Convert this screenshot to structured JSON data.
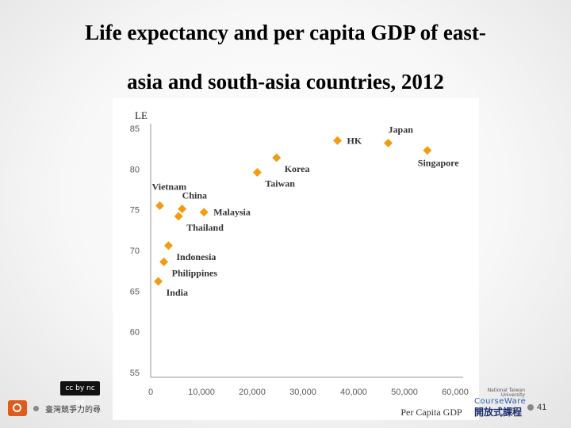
{
  "slide": {
    "title_line1": "Life expectancy and per capita GDP of east-",
    "title_line2": "asia and south-asia countries, 2012",
    "footer_text": "臺灣競爭力的尋",
    "license_badge": "cc by nc nd",
    "page_number": "41",
    "logo": {
      "university": "National Taiwan University",
      "ware": "CourseWare",
      "chinese": "開放式課程"
    }
  },
  "chart_data": {
    "type": "scatter",
    "title": "",
    "xlabel": "Per Capita GDP",
    "ylabel": "LE",
    "xlim": [
      0,
      60000
    ],
    "ylim": [
      55,
      85
    ],
    "x_ticks": [
      0,
      10000,
      20000,
      30000,
      40000,
      50000,
      60000
    ],
    "x_tick_labels": [
      "0",
      "10,000",
      "20,000",
      "30,000",
      "40,000",
      "50,000",
      "60,000"
    ],
    "y_ticks": [
      55,
      60,
      65,
      70,
      75,
      80,
      85
    ],
    "y_tick_labels": [
      "55",
      "60",
      "65",
      "70",
      "75",
      "80",
      "85"
    ],
    "grid": false,
    "marker_color": "#f39c12",
    "points": [
      {
        "label": "Japan",
        "x": 46800,
        "y": 83.2,
        "label_pos": "above-right"
      },
      {
        "label": "HK",
        "x": 36800,
        "y": 83.5,
        "label_pos": "right"
      },
      {
        "label": "Singapore",
        "x": 54500,
        "y": 82.3,
        "label_pos": "below"
      },
      {
        "label": "Korea",
        "x": 24800,
        "y": 81.4,
        "label_pos": "below-right"
      },
      {
        "label": "Taiwan",
        "x": 21000,
        "y": 79.6,
        "label_pos": "below-right"
      },
      {
        "label": "Vietnam",
        "x": 1800,
        "y": 75.5,
        "label_pos": "above"
      },
      {
        "label": "China",
        "x": 6200,
        "y": 75.1,
        "label_pos": "above-right"
      },
      {
        "label": "Malaysia",
        "x": 10500,
        "y": 74.7,
        "label_pos": "right"
      },
      {
        "label": "Thailand",
        "x": 5500,
        "y": 74.2,
        "label_pos": "below-right"
      },
      {
        "label": "Indonesia",
        "x": 3500,
        "y": 70.6,
        "label_pos": "below-right"
      },
      {
        "label": "Philippines",
        "x": 2600,
        "y": 68.6,
        "label_pos": "below-right"
      },
      {
        "label": "India",
        "x": 1500,
        "y": 66.2,
        "label_pos": "below-right"
      }
    ]
  }
}
